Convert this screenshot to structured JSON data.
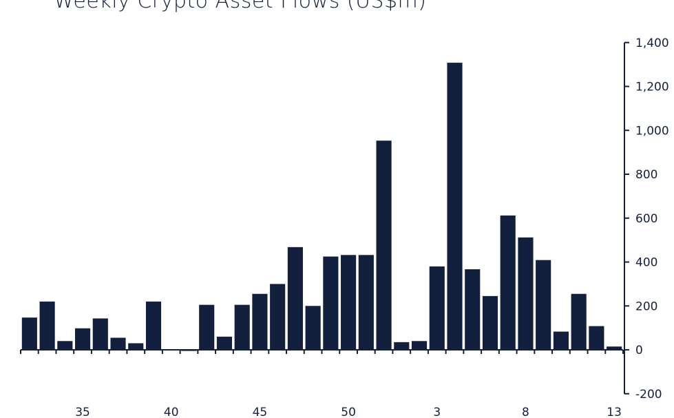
{
  "chart_data": {
    "type": "bar",
    "title": "Weekly Crypto Asset Flows (US$m)",
    "xlabel": "",
    "ylabel": "",
    "ylim": [
      -200,
      1400
    ],
    "yticks": [
      1400,
      1200,
      1000,
      800,
      600,
      400,
      200,
      0,
      -200
    ],
    "ytick_labels": [
      "1,400",
      "1,200",
      "1,000",
      "800",
      "600",
      "400",
      "200",
      "0",
      "-200"
    ],
    "y_axis_position": "right",
    "grid": false,
    "bar_color": "#13203d",
    "categories": [
      "32",
      "33",
      "34",
      "35",
      "36",
      "37",
      "38",
      "39",
      "40",
      "41",
      "42",
      "43",
      "44",
      "45",
      "46",
      "47",
      "48",
      "49",
      "50",
      "51",
      "52",
      "1",
      "2",
      "3",
      "4",
      "5",
      "6",
      "7",
      "8",
      "9",
      "10",
      "11",
      "12",
      "13"
    ],
    "values": [
      147,
      220,
      40,
      98,
      143,
      55,
      30,
      220,
      2,
      -5,
      205,
      60,
      205,
      255,
      300,
      468,
      200,
      425,
      432,
      432,
      953,
      35,
      40,
      380,
      1308,
      367,
      245,
      612,
      512,
      409,
      83,
      255,
      108,
      15
    ],
    "x_tick_labels": [
      {
        "category": "35",
        "text": "35"
      },
      {
        "category": "40",
        "text": "40"
      },
      {
        "category": "45",
        "text": "45"
      },
      {
        "category": "50",
        "text": "50"
      },
      {
        "category": "3",
        "text": "3"
      },
      {
        "category": "8",
        "text": "8"
      },
      {
        "category": "13",
        "text": "13"
      }
    ]
  }
}
